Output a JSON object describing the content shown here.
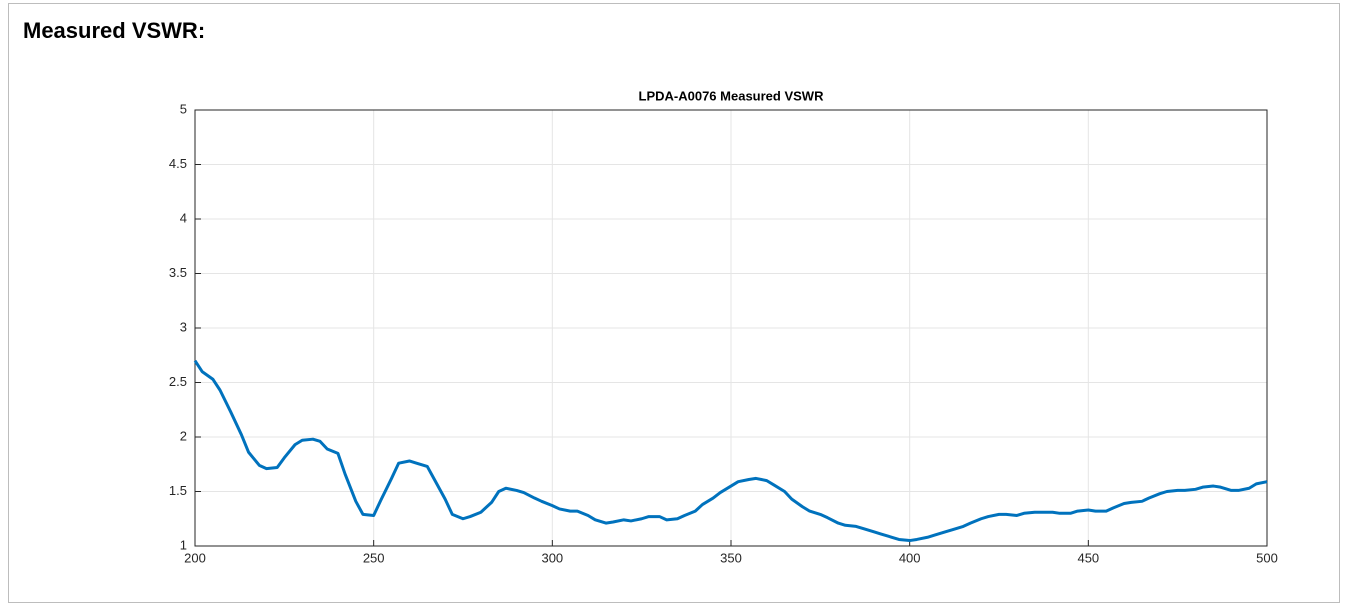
{
  "heading": "Measured VSWR:",
  "chart_data": {
    "type": "line",
    "title": "LPDA-A0076 Measured VSWR",
    "x": [
      200,
      202,
      205,
      207,
      210,
      213,
      215,
      218,
      220,
      223,
      225,
      228,
      230,
      233,
      235,
      237,
      240,
      242,
      245,
      247,
      250,
      252,
      255,
      257,
      260,
      262,
      265,
      267,
      270,
      272,
      275,
      277,
      280,
      283,
      285,
      287,
      290,
      292,
      295,
      297,
      300,
      302,
      305,
      307,
      310,
      312,
      315,
      317,
      320,
      322,
      325,
      327,
      330,
      332,
      335,
      337,
      340,
      342,
      345,
      347,
      350,
      352,
      355,
      357,
      360,
      362,
      365,
      367,
      370,
      372,
      375,
      377,
      380,
      382,
      385,
      387,
      390,
      392,
      395,
      397,
      400,
      402,
      405,
      407,
      410,
      412,
      415,
      417,
      420,
      422,
      425,
      427,
      430,
      432,
      435,
      437,
      440,
      442,
      445,
      447,
      450,
      452,
      455,
      457,
      460,
      462,
      465,
      467,
      470,
      472,
      475,
      477,
      480,
      482,
      485,
      487,
      490,
      492,
      495,
      497,
      500
    ],
    "series": [
      {
        "name": "VSWR",
        "color": "#0072bd",
        "values": [
          2.7,
          2.6,
          2.53,
          2.43,
          2.23,
          2.02,
          1.86,
          1.74,
          1.71,
          1.72,
          1.81,
          1.93,
          1.97,
          1.98,
          1.96,
          1.89,
          1.85,
          1.66,
          1.41,
          1.29,
          1.28,
          1.42,
          1.62,
          1.76,
          1.78,
          1.76,
          1.73,
          1.61,
          1.43,
          1.29,
          1.25,
          1.27,
          1.31,
          1.4,
          1.5,
          1.53,
          1.51,
          1.49,
          1.44,
          1.41,
          1.37,
          1.34,
          1.32,
          1.32,
          1.28,
          1.24,
          1.21,
          1.22,
          1.24,
          1.23,
          1.25,
          1.27,
          1.27,
          1.24,
          1.25,
          1.28,
          1.32,
          1.38,
          1.44,
          1.49,
          1.55,
          1.59,
          1.61,
          1.62,
          1.6,
          1.56,
          1.5,
          1.43,
          1.36,
          1.32,
          1.29,
          1.26,
          1.21,
          1.19,
          1.18,
          1.16,
          1.13,
          1.11,
          1.08,
          1.06,
          1.05,
          1.06,
          1.08,
          1.1,
          1.13,
          1.15,
          1.18,
          1.21,
          1.25,
          1.27,
          1.29,
          1.29,
          1.28,
          1.3,
          1.31,
          1.31,
          1.31,
          1.3,
          1.3,
          1.32,
          1.33,
          1.32,
          1.32,
          1.35,
          1.39,
          1.4,
          1.41,
          1.44,
          1.48,
          1.5,
          1.51,
          1.51,
          1.52,
          1.54,
          1.55,
          1.54,
          1.51,
          1.51,
          1.53,
          1.57,
          1.59
        ]
      }
    ],
    "xlim": [
      200,
      500
    ],
    "xticks": [
      200,
      250,
      300,
      350,
      400,
      450,
      500
    ],
    "ylim": [
      1,
      5
    ],
    "yticks": [
      1,
      1.5,
      2,
      2.5,
      3,
      3.5,
      4,
      4.5,
      5
    ],
    "grid": true
  }
}
